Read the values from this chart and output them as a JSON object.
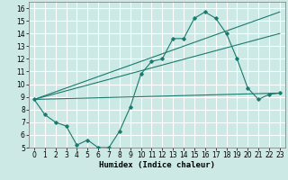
{
  "xlabel": "Humidex (Indice chaleur)",
  "bg_color": "#cce9e5",
  "grid_color": "#ffffff",
  "line_color": "#1a7a6e",
  "xlim": [
    -0.5,
    23.5
  ],
  "ylim": [
    5,
    16.5
  ],
  "xticks": [
    0,
    1,
    2,
    3,
    4,
    5,
    6,
    7,
    8,
    9,
    10,
    11,
    12,
    13,
    14,
    15,
    16,
    17,
    18,
    19,
    20,
    21,
    22,
    23
  ],
  "yticks": [
    5,
    6,
    7,
    8,
    9,
    10,
    11,
    12,
    13,
    14,
    15,
    16
  ],
  "line1_x": [
    0,
    1,
    2,
    3,
    4,
    5,
    6,
    7,
    8,
    9,
    10,
    11,
    12,
    13,
    14,
    15,
    16,
    17,
    18,
    19,
    20,
    21,
    22,
    23
  ],
  "line1_y": [
    8.8,
    7.6,
    7.0,
    6.7,
    5.2,
    5.6,
    5.0,
    5.0,
    6.3,
    8.2,
    10.8,
    11.8,
    12.0,
    13.6,
    13.6,
    15.2,
    15.7,
    15.2,
    14.0,
    12.0,
    9.7,
    8.8,
    9.2,
    9.3
  ],
  "line2_x": [
    0,
    23
  ],
  "line2_y": [
    8.8,
    9.3
  ],
  "line3_x": [
    0,
    23
  ],
  "line3_y": [
    8.8,
    14.0
  ],
  "line4_x": [
    0,
    23
  ],
  "line4_y": [
    8.8,
    15.7
  ],
  "tick_fontsize": 5.5,
  "xlabel_fontsize": 6.5
}
